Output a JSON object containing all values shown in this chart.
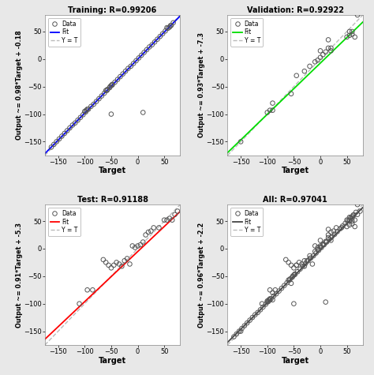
{
  "subplots": [
    {
      "title": "Training: R=0.99206",
      "ylabel": "Output ~= 0.98*Target + -0.18",
      "xlabel": "Target",
      "fit_color": "#0000FF",
      "slope": 0.98,
      "intercept": -0.18,
      "xlim": [
        -175,
        80
      ],
      "ylim": [
        -175,
        80
      ],
      "xticks": [
        -150,
        -100,
        -50,
        0,
        50
      ],
      "yticks": [
        -150,
        -100,
        -50,
        0,
        50
      ],
      "data_x": [
        -163,
        -158,
        -153,
        -148,
        -143,
        -138,
        -133,
        -128,
        -123,
        -118,
        -113,
        -108,
        -103,
        -98,
        -93,
        -88,
        -83,
        -78,
        -73,
        -68,
        -63,
        -58,
        -53,
        -48,
        -43,
        -38,
        -33,
        -28,
        -23,
        -18,
        -13,
        -8,
        -3,
        2,
        7,
        12,
        17,
        22,
        27,
        32,
        37,
        42,
        47,
        52,
        57,
        62,
        67,
        -60,
        -57,
        -50,
        -100,
        -50,
        -97,
        -95,
        -52,
        -48,
        10,
        55,
        60,
        63
      ],
      "data_y": [
        -160,
        -155,
        -150,
        -145,
        -140,
        -135,
        -130,
        -125,
        -120,
        -116,
        -111,
        -106,
        -101,
        -96,
        -91,
        -86,
        -82,
        -77,
        -72,
        -67,
        -62,
        -57,
        -52,
        -47,
        -42,
        -37,
        -32,
        -27,
        -22,
        -17,
        -13,
        -8,
        -3,
        2,
        7,
        12,
        17,
        22,
        26,
        31,
        36,
        41,
        46,
        51,
        56,
        61,
        66,
        -57,
        -55,
        -48,
        -95,
        -100,
        -93,
        -91,
        -50,
        -46,
        -97,
        57,
        58,
        61
      ]
    },
    {
      "title": "Validation: R=0.92922",
      "ylabel": "Output ~= 0.93*Target + -7.3",
      "xlabel": "Target",
      "fit_color": "#00DD00",
      "slope": 0.93,
      "intercept": -7.3,
      "xlim": [
        -175,
        80
      ],
      "ylim": [
        -175,
        80
      ],
      "xticks": [
        -150,
        -100,
        -50,
        0,
        50
      ],
      "yticks": [
        -150,
        -100,
        -50,
        0,
        50
      ],
      "data_x": [
        -150,
        -95,
        -90,
        -55,
        -45,
        -30,
        -20,
        -10,
        -5,
        0,
        5,
        10,
        15,
        20,
        50,
        55,
        60,
        65,
        70,
        55,
        60,
        -90,
        -100,
        15,
        20,
        0
      ],
      "data_y": [
        -150,
        -93,
        -80,
        -63,
        -30,
        -22,
        -13,
        -5,
        -2,
        3,
        8,
        13,
        20,
        15,
        40,
        43,
        45,
        40,
        80,
        50,
        50,
        -93,
        -97,
        35,
        20,
        15
      ]
    },
    {
      "title": "Test: R=0.91188",
      "ylabel": "Output ~= 0.91*Target + -5.3",
      "xlabel": "Target",
      "fit_color": "#FF0000",
      "slope": 0.91,
      "intercept": -5.3,
      "xlim": [
        -175,
        80
      ],
      "ylim": [
        -175,
        80
      ],
      "xticks": [
        -150,
        -100,
        -50,
        0,
        50
      ],
      "yticks": [
        -150,
        -100,
        -50,
        0,
        50
      ],
      "data_x": [
        -110,
        -95,
        -85,
        -65,
        -60,
        -55,
        -50,
        -45,
        -40,
        -35,
        -30,
        -25,
        -20,
        -15,
        -10,
        -5,
        0,
        5,
        10,
        15,
        20,
        25,
        30,
        40,
        50,
        55,
        60,
        65,
        70,
        75
      ],
      "data_y": [
        -100,
        -75,
        -75,
        -20,
        -25,
        -30,
        -35,
        -30,
        -25,
        -28,
        -32,
        -22,
        -18,
        -28,
        5,
        2,
        5,
        7,
        12,
        25,
        30,
        32,
        38,
        38,
        52,
        52,
        55,
        52,
        62,
        68
      ]
    },
    {
      "title": "All: R=0.97041",
      "ylabel": "Output ~= 0.96*Target + -2.2",
      "xlabel": "Target",
      "fit_color": "#444444",
      "slope": 0.96,
      "intercept": -2.2,
      "xlim": [
        -175,
        80
      ],
      "ylim": [
        -175,
        80
      ],
      "xticks": [
        -150,
        -100,
        -50,
        0,
        50
      ],
      "yticks": [
        -150,
        -100,
        -50,
        0,
        50
      ],
      "data_x": [
        -163,
        -158,
        -153,
        -148,
        -143,
        -138,
        -133,
        -128,
        -123,
        -118,
        -113,
        -108,
        -103,
        -98,
        -93,
        -88,
        -83,
        -78,
        -73,
        -68,
        -63,
        -58,
        -53,
        -48,
        -43,
        -38,
        -33,
        -28,
        -23,
        -18,
        -13,
        -8,
        -3,
        2,
        7,
        12,
        17,
        22,
        27,
        32,
        37,
        42,
        47,
        52,
        57,
        62,
        67,
        -60,
        -57,
        -50,
        -100,
        -50,
        -97,
        -95,
        -52,
        -48,
        10,
        55,
        60,
        63,
        -150,
        -95,
        -90,
        -55,
        -45,
        -30,
        -20,
        -10,
        -5,
        0,
        5,
        10,
        15,
        20,
        50,
        55,
        60,
        65,
        70,
        55,
        60,
        -90,
        -100,
        15,
        20,
        0,
        -110,
        -95,
        -85,
        -65,
        -60,
        -55,
        -50,
        -45,
        -40,
        -35,
        -30,
        -25,
        -20,
        -15,
        -10,
        -5,
        0,
        5,
        10,
        15,
        20,
        25,
        30,
        40,
        50,
        55,
        60,
        65,
        70,
        75
      ],
      "data_y": [
        -160,
        -155,
        -150,
        -145,
        -140,
        -135,
        -130,
        -125,
        -120,
        -116,
        -111,
        -106,
        -101,
        -96,
        -91,
        -86,
        -82,
        -77,
        -72,
        -67,
        -62,
        -57,
        -52,
        -47,
        -42,
        -37,
        -32,
        -27,
        -22,
        -17,
        -13,
        -8,
        -3,
        2,
        7,
        12,
        17,
        22,
        26,
        31,
        36,
        41,
        46,
        51,
        56,
        61,
        66,
        -57,
        -55,
        -48,
        -95,
        -100,
        -93,
        -91,
        -50,
        -46,
        -97,
        57,
        58,
        61,
        -150,
        -93,
        -80,
        -63,
        -30,
        -22,
        -13,
        -5,
        -2,
        3,
        8,
        13,
        20,
        15,
        40,
        43,
        45,
        40,
        80,
        50,
        50,
        -93,
        -97,
        35,
        20,
        15,
        -100,
        -75,
        -75,
        -20,
        -25,
        -30,
        -35,
        -30,
        -25,
        -28,
        -32,
        -22,
        -18,
        -28,
        5,
        2,
        5,
        7,
        12,
        25,
        30,
        32,
        38,
        38,
        52,
        52,
        55,
        52,
        62,
        68
      ]
    }
  ],
  "background_color": "#E8E8E8",
  "panel_bg": "#FFFFFF",
  "marker_facecolor": "none",
  "marker_edge_color": "#555555",
  "marker_size": 4,
  "marker_lw": 0.7,
  "yt_line_color": "#BBBBBB",
  "yt_line_style": "--"
}
